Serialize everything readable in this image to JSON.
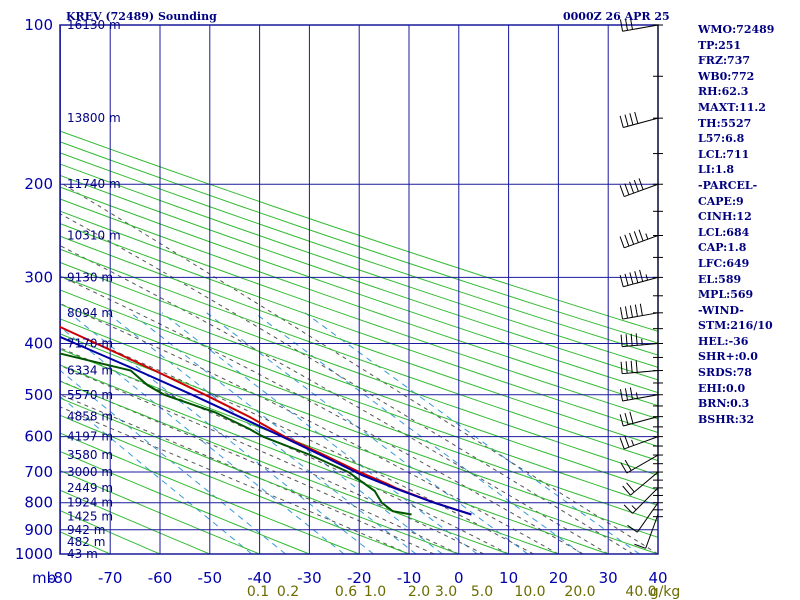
{
  "header": {
    "station_title": "KREV (72489) Sounding",
    "valid_time": "0000Z 26 APR 25"
  },
  "stats": [
    "WMO:72489",
    "TP:251",
    "FRZ:737",
    "WB0:772",
    "RH:62.3",
    "MAXT:11.2",
    "TH:5527",
    "L57:6.8",
    "LCL:711",
    "LI:1.8",
    "-PARCEL-",
    "CAPE:9",
    "CINH:12",
    "LCL:684",
    "CAP:1.8",
    "LFC:649",
    "EL:589",
    "MPL:569",
    "-WIND-",
    "STM:216/10",
    "HEL:-36",
    "SHR+:0.0",
    "SRDS:78",
    "EHI:0.0",
    "BRN:0.3",
    "BSHR:32"
  ],
  "colors": {
    "isobar": "#1a1a9c",
    "isotherm": "#1a1a9c",
    "dry_adiabat": "#33bb33",
    "moist_adiabat": "#555555",
    "mixing_ratio": "#3a9ad8",
    "temperature": "#cc0000",
    "dewpoint": "#005500",
    "parcel": "#0000aa",
    "text": "#000080"
  },
  "chart_data": {
    "type": "skew-t log-p",
    "xlabel": "",
    "ylabel": "mb",
    "pressure_range": [
      1000,
      100
    ],
    "temperature_range": [
      -80,
      40
    ],
    "pressure_ticks": [
      100,
      200,
      300,
      400,
      500,
      600,
      700,
      800,
      900,
      1000
    ],
    "temperature_ticks": [
      -80,
      -70,
      -60,
      -50,
      -40,
      -30,
      -20,
      -10,
      0,
      10,
      20,
      30,
      40
    ],
    "temperature_tick_labels": [
      "-80",
      "-70",
      "-60",
      "-50",
      "-40",
      "-30",
      "-20",
      "-10",
      "0",
      "10",
      "20",
      "30",
      "40"
    ],
    "height_labels": [
      {
        "p": 100,
        "label": "16130 m"
      },
      {
        "p": 150,
        "label": "13800 m"
      },
      {
        "p": 200,
        "label": "11740 m"
      },
      {
        "p": 250,
        "label": "10310 m"
      },
      {
        "p": 300,
        "label": "9130 m"
      },
      {
        "p": 350,
        "label": "8094 m"
      },
      {
        "p": 400,
        "label": "7170 m"
      },
      {
        "p": 450,
        "label": "6334 m"
      },
      {
        "p": 500,
        "label": "5570 m"
      },
      {
        "p": 550,
        "label": "4858 m"
      },
      {
        "p": 600,
        "label": "4197 m"
      },
      {
        "p": 650,
        "label": "3580 m"
      },
      {
        "p": 700,
        "label": "3000 m"
      },
      {
        "p": 750,
        "label": "2449 m"
      },
      {
        "p": 800,
        "label": "1924 m"
      },
      {
        "p": 850,
        "label": "1425 m"
      },
      {
        "p": 900,
        "label": "942 m"
      },
      {
        "p": 950,
        "label": "482 m"
      },
      {
        "p": 1000,
        "label": "43 m"
      }
    ],
    "mixing_ratio_labels": [
      "0.1",
      "0.2",
      "0.6",
      "1.0",
      "2.0",
      "3.0",
      "5.0",
      "10.0",
      "20.0",
      "40.0",
      "g/kg"
    ],
    "mixing_ratio_values": [
      0.1,
      0.2,
      0.6,
      1.0,
      2.0,
      3.0,
      5.0,
      10.0,
      20.0,
      40.0
    ],
    "dry_adiabats_C": [
      -160,
      -150,
      -140,
      -130,
      -120,
      -110,
      -100,
      -90,
      -80,
      -70,
      -60,
      -50,
      -40,
      -30,
      -20,
      -10,
      0,
      10,
      20,
      30,
      40,
      50,
      60,
      70,
      80,
      90,
      100,
      110,
      120,
      130,
      140,
      150,
      160,
      170,
      180,
      190,
      200
    ],
    "moist_adiabats_C": [
      -10,
      -5,
      0,
      5,
      10,
      15,
      20,
      25,
      30,
      35,
      40
    ],
    "series": [
      {
        "name": "Temperature",
        "points": [
          {
            "p": 842,
            "t": 10.6
          },
          {
            "p": 800,
            "t": 5.6
          },
          {
            "p": 750,
            "t": 0.8
          },
          {
            "p": 737,
            "t": 0.0
          },
          {
            "p": 700,
            "t": -3.2
          },
          {
            "p": 650,
            "t": -6.8
          },
          {
            "p": 600,
            "t": -11.0
          },
          {
            "p": 550,
            "t": -14.0
          },
          {
            "p": 500,
            "t": -18.4
          },
          {
            "p": 450,
            "t": -23.6
          },
          {
            "p": 400,
            "t": -29.8
          },
          {
            "p": 350,
            "t": -37.0
          },
          {
            "p": 300,
            "t": -44.4
          },
          {
            "p": 280,
            "t": -48.0
          },
          {
            "p": 251,
            "t": -54.0
          },
          {
            "p": 230,
            "t": -55.0
          },
          {
            "p": 200,
            "t": -54.8
          },
          {
            "p": 175,
            "t": -55.2
          },
          {
            "p": 150,
            "t": -55.6
          },
          {
            "p": 125,
            "t": -59.0
          },
          {
            "p": 110,
            "t": -61.0
          },
          {
            "p": 100,
            "t": -62.2
          }
        ]
      },
      {
        "name": "Dewpoint",
        "points": [
          {
            "p": 842,
            "t": -1.4
          },
          {
            "p": 830,
            "t": -4.5
          },
          {
            "p": 800,
            "t": -5.0
          },
          {
            "p": 760,
            "t": -4.0
          },
          {
            "p": 740,
            "t": -4.5
          },
          {
            "p": 700,
            "t": -5.4
          },
          {
            "p": 650,
            "t": -9.6
          },
          {
            "p": 600,
            "t": -15.4
          },
          {
            "p": 580,
            "t": -16.5
          },
          {
            "p": 540,
            "t": -20.0
          },
          {
            "p": 500,
            "t": -26.6
          },
          {
            "p": 480,
            "t": -28.0
          },
          {
            "p": 450,
            "t": -28.4
          },
          {
            "p": 420,
            "t": -38.4
          },
          {
            "p": 400,
            "t": -45.0
          },
          {
            "p": 380,
            "t": -45.0
          },
          {
            "p": 350,
            "t": -52.0
          },
          {
            "p": 320,
            "t": -58.0
          },
          {
            "p": 300,
            "t": -60.0
          },
          {
            "p": 280,
            "t": -62.0
          },
          {
            "p": 260,
            "t": -64.0
          },
          {
            "p": 240,
            "t": -66.0
          },
          {
            "p": 220,
            "t": -70.0
          },
          {
            "p": 200,
            "t": -72.0
          },
          {
            "p": 180,
            "t": -76.0
          },
          {
            "p": 160,
            "t": -78.0
          },
          {
            "p": 140,
            "t": -82.0
          },
          {
            "p": 120,
            "t": -84.0
          },
          {
            "p": 100,
            "t": -86.0
          }
        ]
      },
      {
        "name": "Parcel",
        "points": [
          {
            "p": 842,
            "t": 10.6
          },
          {
            "p": 800,
            "t": 5.5
          },
          {
            "p": 750,
            "t": 0.5
          },
          {
            "p": 711,
            "t": -3.2
          },
          {
            "p": 650,
            "t": -7.5
          },
          {
            "p": 600,
            "t": -11.5
          },
          {
            "p": 550,
            "t": -16.0
          },
          {
            "p": 500,
            "t": -21.0
          },
          {
            "p": 450,
            "t": -27.0
          },
          {
            "p": 400,
            "t": -34.0
          },
          {
            "p": 350,
            "t": -42.0
          },
          {
            "p": 300,
            "t": -52.0
          },
          {
            "p": 250,
            "t": -63.0
          },
          {
            "p": 200,
            "t": -76.0
          },
          {
            "p": 190,
            "t": -79.0
          }
        ]
      }
    ],
    "wind_barbs": [
      {
        "p": 842,
        "dir": 200,
        "spd": 10
      },
      {
        "p": 800,
        "dir": 215,
        "spd": 10
      },
      {
        "p": 750,
        "dir": 225,
        "spd": 15
      },
      {
        "p": 700,
        "dir": 230,
        "spd": 20
      },
      {
        "p": 650,
        "dir": 240,
        "spd": 20
      },
      {
        "p": 600,
        "dir": 250,
        "spd": 25
      },
      {
        "p": 550,
        "dir": 255,
        "spd": 30
      },
      {
        "p": 500,
        "dir": 260,
        "spd": 35
      },
      {
        "p": 450,
        "dir": 265,
        "spd": 40
      },
      {
        "p": 400,
        "dir": 265,
        "spd": 45
      },
      {
        "p": 350,
        "dir": 260,
        "spd": 50
      },
      {
        "p": 300,
        "dir": 255,
        "spd": 55
      },
      {
        "p": 250,
        "dir": 250,
        "spd": 55
      },
      {
        "p": 200,
        "dir": 250,
        "spd": 50
      },
      {
        "p": 150,
        "dir": 255,
        "spd": 40
      },
      {
        "p": 100,
        "dir": 260,
        "spd": 30
      }
    ],
    "grid": true
  }
}
